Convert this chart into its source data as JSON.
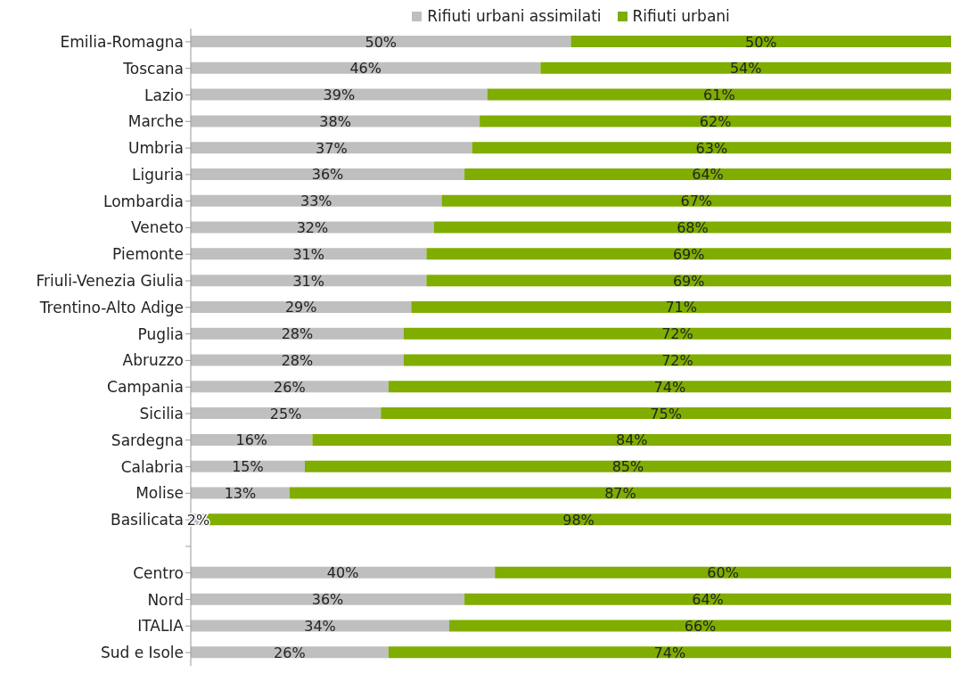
{
  "chart_data": {
    "type": "bar",
    "orientation": "horizontal",
    "stacked": true,
    "legend": "top",
    "data_labels": true,
    "categories": [
      "Emilia-Romagna",
      "Toscana",
      "Lazio",
      "Marche",
      "Umbria",
      "Liguria",
      "Lombardia",
      "Veneto",
      "Piemonte",
      "Friuli-Venezia Giulia",
      "Trentino-Alto Adige",
      "Puglia",
      "Abruzzo",
      "Campania",
      "Sicilia",
      "Sardegna",
      "Calabria",
      "Molise",
      "Basilicata",
      null,
      "Centro",
      "Nord",
      "ITALIA",
      "Sud e Isole"
    ],
    "series": [
      {
        "name": "Rifiuti urbani assimilati",
        "color": "#bfbfbf",
        "values": [
          50,
          46,
          39,
          38,
          37,
          36,
          33,
          32,
          31,
          31,
          29,
          28,
          28,
          26,
          25,
          16,
          15,
          13,
          2,
          null,
          40,
          36,
          34,
          26
        ],
        "value_labels": [
          "50%",
          "46%",
          "39%",
          "38%",
          "37%",
          "36%",
          "33%",
          "32%",
          "31%",
          "31%",
          "29%",
          "28%",
          "28%",
          "26%",
          "25%",
          "16%",
          "15%",
          "13%",
          "2%",
          null,
          "40%",
          "36%",
          "34%",
          "26%"
        ]
      },
      {
        "name": "Rifiuti urbani",
        "color": "#7fad00",
        "values": [
          50,
          54,
          61,
          62,
          63,
          64,
          67,
          68,
          69,
          69,
          71,
          72,
          72,
          74,
          75,
          84,
          85,
          87,
          98,
          null,
          60,
          64,
          66,
          74
        ],
        "value_labels": [
          "50%",
          "54%",
          "61%",
          "62%",
          "63%",
          "64%",
          "67%",
          "68%",
          "69%",
          "69%",
          "71%",
          "72%",
          "72%",
          "74%",
          "75%",
          "84%",
          "85%",
          "87%",
          "98%",
          null,
          "60%",
          "64%",
          "66%",
          "74%"
        ]
      }
    ]
  }
}
